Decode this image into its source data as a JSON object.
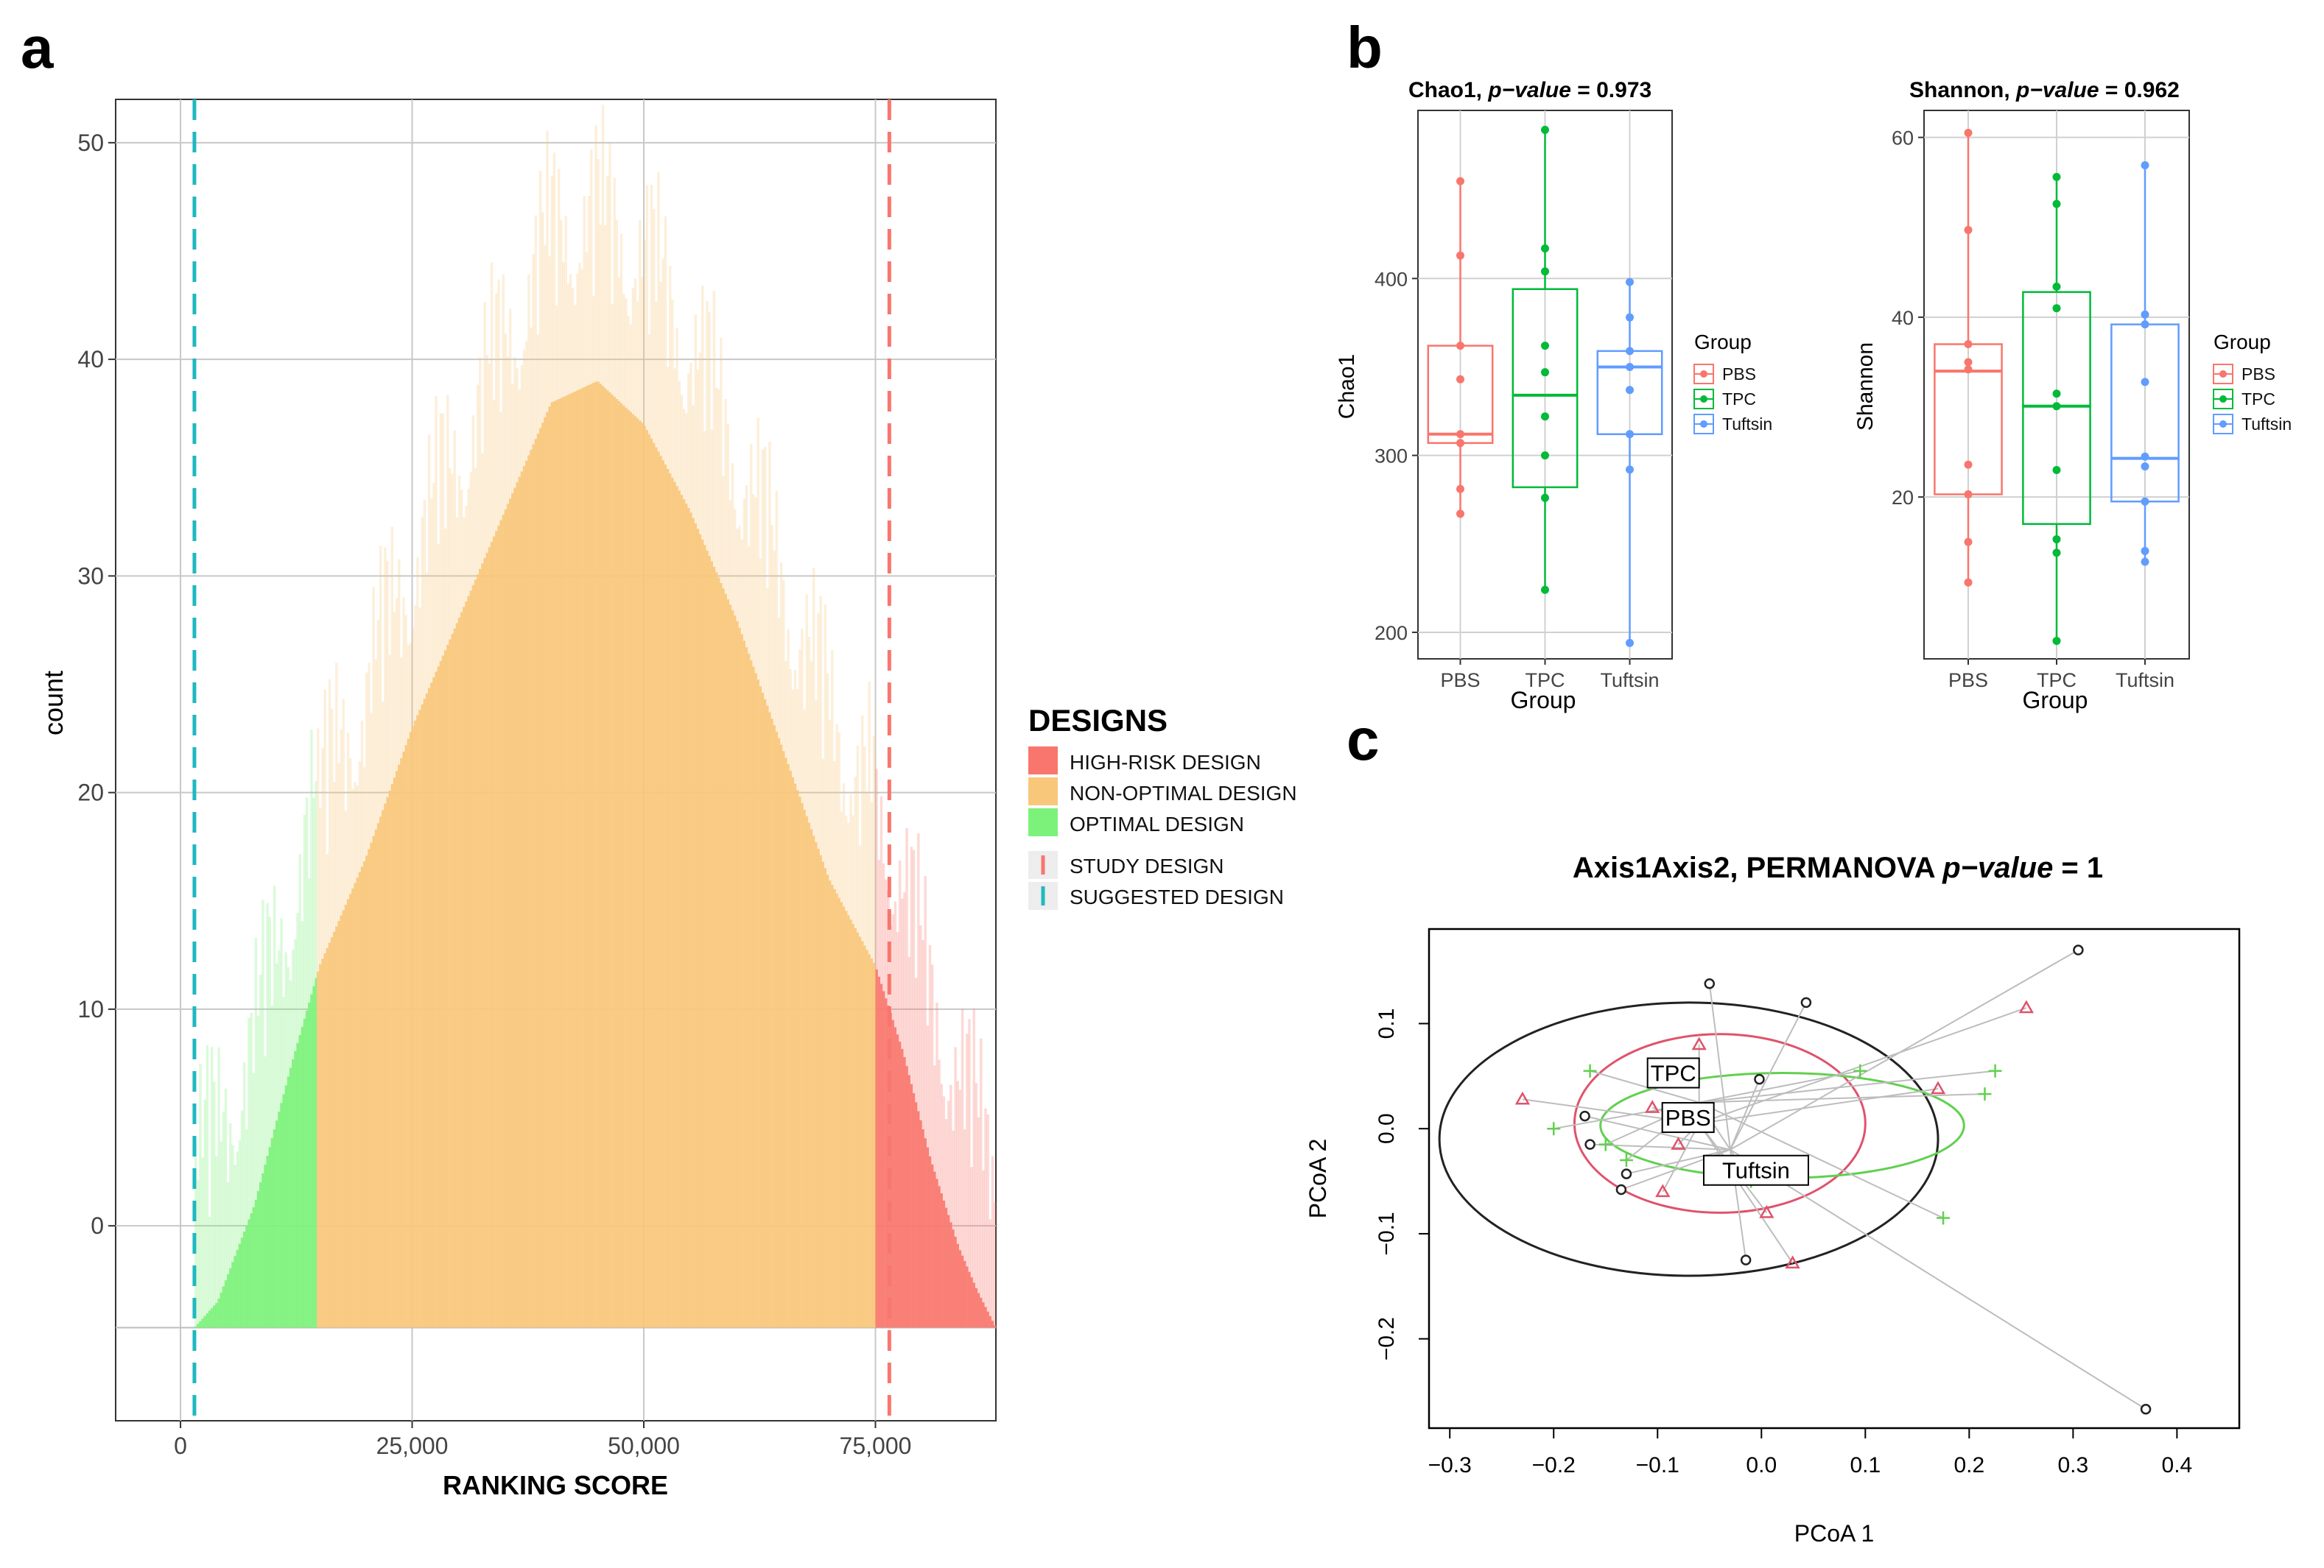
{
  "panels": {
    "a": "a",
    "b": "b",
    "c": "c"
  },
  "colors": {
    "high_risk": "#F8766D",
    "non_optimal": "#F9C77A",
    "optimal": "#7CF27A",
    "study_line": "#F8766D",
    "suggested_line": "#1FB8C1",
    "pbs": "#F8766D",
    "tpc": "#00BA38",
    "tuftsin": "#619CFF"
  },
  "chart_data": [
    {
      "id": "histogram",
      "type": "bar",
      "title": "",
      "xlabel": "RANKING SCORE",
      "ylabel": "count",
      "xlim": [
        -7000,
        88000
      ],
      "ylim": [
        -9,
        52
      ],
      "x_ticks": [
        0,
        25000,
        50000,
        75000
      ],
      "x_tick_labels": [
        "0",
        "25,000",
        "50,000",
        "75,000"
      ],
      "y_ticks": [
        0,
        10,
        20,
        30,
        40,
        50
      ],
      "y_tick_labels": [
        "0",
        "10",
        "20",
        "30",
        "40",
        "50"
      ],
      "baseline": -4.7,
      "density": {
        "x": [
          1500,
          4000,
          8000,
          12000,
          15000,
          20000,
          25000,
          30000,
          35000,
          40000,
          45000,
          50000,
          55000,
          60000,
          65000,
          70000,
          75000,
          78000,
          81000,
          84000,
          86000,
          88000
        ],
        "count": [
          -4.7,
          -3.5,
          1,
          7.5,
          12,
          17,
          23,
          28,
          33,
          38,
          39,
          37,
          33,
          28,
          22,
          16,
          12,
          8,
          3,
          -1,
          -3,
          -4.7
        ]
      },
      "regions": [
        {
          "label": "OPTIMAL DESIGN",
          "from": 1500,
          "to": 14700
        },
        {
          "label": "NON-OPTIMAL DESIGN",
          "from": 14700,
          "to": 75000
        },
        {
          "label": "HIGH-RISK DESIGN",
          "from": 75000,
          "to": 88000
        }
      ],
      "vlines": [
        {
          "label": "SUGGESTED DESIGN",
          "x": 1500
        },
        {
          "label": "STUDY DESIGN",
          "x": 76500
        }
      ],
      "legend": {
        "title": "DESIGNS",
        "fill_items": [
          "HIGH-RISK DESIGN",
          "NON-OPTIMAL DESIGN",
          "OPTIMAL DESIGN"
        ],
        "line_items": [
          "STUDY DESIGN",
          "SUGGESTED DESIGN"
        ],
        "position": "right"
      }
    },
    {
      "id": "chao1",
      "type": "box",
      "title_prefix": "Chao1, ",
      "title_italic": "p−value",
      "title_suffix": " = 0.973",
      "xlabel": "Group",
      "ylabel": "Chao1",
      "categories": [
        "PBS",
        "TPC",
        "Tuftsin"
      ],
      "ylim": [
        185,
        495
      ],
      "y_ticks": [
        200,
        300,
        400
      ],
      "y_tick_labels": [
        "200",
        "300",
        "400"
      ],
      "boxes": [
        {
          "name": "PBS",
          "q1": 307,
          "median": 312,
          "q3": 362,
          "low": 267,
          "high": 455,
          "points": [
            455,
            413,
            362,
            343,
            312,
            307,
            281,
            267
          ]
        },
        {
          "name": "TPC",
          "q1": 282,
          "median": 334,
          "q3": 394,
          "low": 224,
          "high": 484,
          "points": [
            484,
            417,
            404,
            362,
            347,
            322,
            300,
            276,
            224
          ]
        },
        {
          "name": "Tuftsin",
          "q1": 312,
          "median": 350,
          "q3": 359,
          "low": 194,
          "high": 398,
          "points": [
            398,
            378,
            359,
            350,
            337,
            312,
            292,
            194
          ]
        }
      ],
      "legend": {
        "title": "Group",
        "items": [
          "PBS",
          "TPC",
          "Tuftsin"
        ],
        "position": "right"
      }
    },
    {
      "id": "shannon",
      "type": "box",
      "title_prefix": "Shannon, ",
      "title_italic": "p−value",
      "title_suffix": " = 0.962",
      "xlabel": "Group",
      "ylabel": "Shannon",
      "categories": [
        "PBS",
        "TPC",
        "Tuftsin"
      ],
      "ylim": [
        2,
        63
      ],
      "y_ticks": [
        20,
        40,
        60
      ],
      "y_tick_labels": [
        "20",
        "40",
        "60"
      ],
      "boxes": [
        {
          "name": "PBS",
          "q1": 20.3,
          "median": 34,
          "q3": 37,
          "low": 10.5,
          "high": 60.5,
          "points": [
            60.5,
            49.7,
            37,
            35,
            34.2,
            23.6,
            20.3,
            15,
            10.5
          ]
        },
        {
          "name": "TPC",
          "q1": 17,
          "median": 30.1,
          "q3": 42.8,
          "low": 4,
          "high": 55.6,
          "points": [
            55.6,
            52.6,
            43.4,
            41,
            31.5,
            30.1,
            23,
            15.3,
            13.8,
            4
          ]
        },
        {
          "name": "Tuftsin",
          "q1": 19.5,
          "median": 24.3,
          "q3": 39.2,
          "low": 12.8,
          "high": 56.9,
          "points": [
            56.9,
            40.3,
            39.2,
            32.8,
            24.5,
            23.4,
            19.5,
            14,
            12.8
          ]
        }
      ],
      "legend": {
        "title": "Group",
        "items": [
          "PBS",
          "TPC",
          "Tuftsin"
        ],
        "position": "right"
      }
    },
    {
      "id": "pcoa",
      "type": "scatter",
      "title_prefix": "Axis1Axis2, PERMANOVA ",
      "title_italic": "p−value",
      "title_suffix": " = 1",
      "xlabel": "PCoA 1",
      "ylabel": "PCoA 2",
      "xlim": [
        -0.32,
        0.46
      ],
      "ylim": [
        -0.285,
        0.19
      ],
      "x_ticks": [
        -0.3,
        -0.2,
        -0.1,
        0.0,
        0.1,
        0.2,
        0.3,
        0.4
      ],
      "x_tick_labels": [
        "−0.3",
        "−0.2",
        "−0.1",
        "0.0",
        "0.1",
        "0.2",
        "0.3",
        "0.4"
      ],
      "y_ticks": [
        -0.2,
        -0.1,
        0.0,
        0.1
      ],
      "y_tick_labels": [
        "−0.2",
        "−0.1",
        "0.0",
        "0.1"
      ],
      "series": [
        {
          "name": "Tuftsin",
          "marker": "circle",
          "color": "#222222",
          "centroid": [
            -0.03,
            -0.02
          ],
          "centroid_label": "Tuftsin",
          "ellipse": {
            "cx": -0.07,
            "cy": -0.01,
            "rx": 0.24,
            "ry": 0.13
          },
          "points": [
            [
              0.305,
              0.17
            ],
            [
              0.37,
              -0.267
            ],
            [
              -0.05,
              0.138
            ],
            [
              0.043,
              0.12
            ],
            [
              -0.002,
              0.047
            ],
            [
              -0.17,
              0.012
            ],
            [
              -0.165,
              -0.015
            ],
            [
              -0.13,
              -0.043
            ],
            [
              -0.135,
              -0.058
            ],
            [
              -0.015,
              -0.125
            ]
          ]
        },
        {
          "name": "PBS",
          "marker": "triangle",
          "color": "#DF536B",
          "centroid": [
            -0.06,
            0.005
          ],
          "centroid_label": "PBS",
          "ellipse": {
            "cx": -0.04,
            "cy": 0.005,
            "rx": 0.14,
            "ry": 0.085
          },
          "points": [
            [
              0.255,
              0.115
            ],
            [
              -0.06,
              0.08
            ],
            [
              -0.23,
              0.028
            ],
            [
              -0.105,
              0.02
            ],
            [
              -0.08,
              -0.015
            ],
            [
              -0.095,
              -0.06
            ],
            [
              0.005,
              -0.08
            ],
            [
              0.03,
              -0.128
            ],
            [
              0.17,
              0.038
            ]
          ]
        },
        {
          "name": "TPC",
          "marker": "plus",
          "color": "#61D04F",
          "centroid": [
            -0.06,
            0.025
          ],
          "centroid_label": "TPC",
          "ellipse": {
            "cx": 0.02,
            "cy": 0.003,
            "rx": 0.175,
            "ry": 0.05
          },
          "points": [
            [
              0.225,
              0.055
            ],
            [
              0.215,
              0.033
            ],
            [
              0.175,
              -0.085
            ],
            [
              0.095,
              0.055
            ],
            [
              -0.165,
              0.055
            ],
            [
              -0.2,
              0.0
            ],
            [
              -0.15,
              -0.015
            ],
            [
              -0.13,
              -0.03
            ],
            [
              -0.01,
              -0.05
            ]
          ]
        }
      ],
      "legend": {
        "position": "none"
      }
    }
  ]
}
